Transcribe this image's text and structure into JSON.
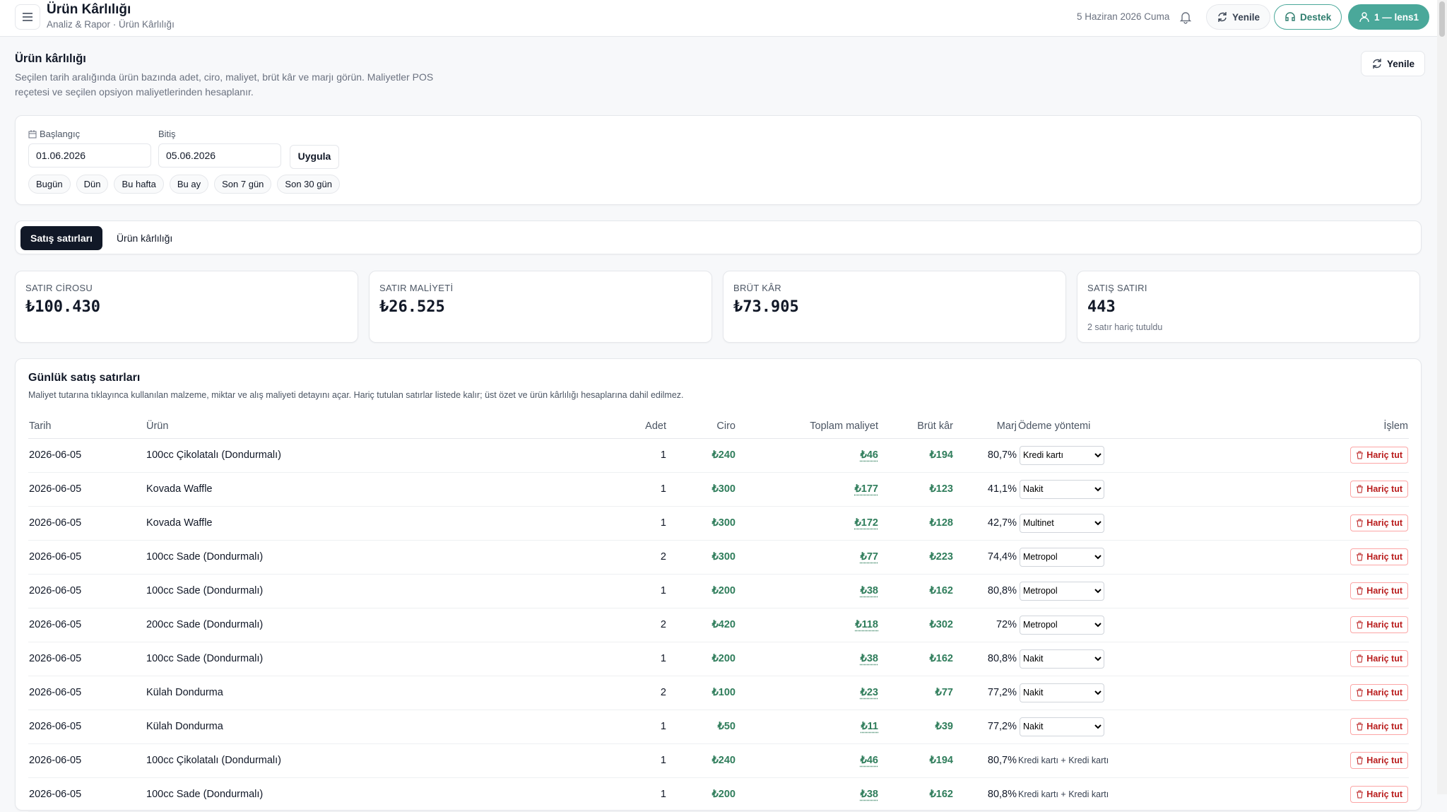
{
  "header": {
    "title": "Ürün Kârlılığı",
    "breadcrumb": "Analiz & Rapor · Ürün Kârlılığı",
    "date": "5 Haziran 2026 Cuma",
    "refresh": "Yenile",
    "support": "Destek",
    "user": "1 — lens1"
  },
  "intro": {
    "title": "Ürün kârlılığı",
    "description": "Seçilen tarih aralığında ürün bazında adet, ciro, maliyet, brüt kâr ve marjı görün. Maliyetler POS reçetesi ve seçilen opsiyon maliyetlerinden hesaplanır.",
    "refresh": "Yenile"
  },
  "filters": {
    "start_label": "Başlangıç",
    "start": "01.06.2026",
    "end_label": "Bitiş",
    "end": "05.06.2026",
    "apply": "Uygula",
    "presets": [
      "Bugün",
      "Dün",
      "Bu hafta",
      "Bu ay",
      "Son 7 gün",
      "Son 30 gün"
    ]
  },
  "tabs": [
    "Satış satırları",
    "Ürün kârlılığı"
  ],
  "cards": [
    {
      "label": "SATIR CİROSU",
      "value": "₺100.430"
    },
    {
      "label": "SATIR MALİYETİ",
      "value": "₺26.525"
    },
    {
      "label": "BRÜT KÂR",
      "value": "₺73.905"
    },
    {
      "label": "SATIŞ SATIRI",
      "value": "443",
      "note": "2 satır hariç tutuldu"
    }
  ],
  "table": {
    "title": "Günlük satış satırları",
    "description": "Maliyet tutarına tıklayınca kullanılan malzeme, miktar ve alış maliyeti detayını açar. Hariç tutulan satırlar listede kalır; üst özet ve ürün kârlılığı hesaplarına dahil edilmez.",
    "columns": [
      "Tarih",
      "Ürün",
      "Adet",
      "Ciro",
      "Toplam maliyet",
      "Brüt kâr",
      "Marj",
      "Ödeme yöntemi",
      "İşlem"
    ],
    "action_label": "Hariç tut",
    "rows": [
      [
        "2026-06-05",
        "100cc Çikolatalı (Dondurmalı)",
        "1",
        "₺240",
        "₺46",
        "₺194",
        "80,7%",
        "Kredi kartı"
      ],
      [
        "2026-06-05",
        "Kovada Waffle",
        "1",
        "₺300",
        "₺177",
        "₺123",
        "41,1%",
        "Nakit"
      ],
      [
        "2026-06-05",
        "Kovada Waffle",
        "1",
        "₺300",
        "₺172",
        "₺128",
        "42,7%",
        "Multinet"
      ],
      [
        "2026-06-05",
        "100cc Sade (Dondurmalı)",
        "2",
        "₺300",
        "₺77",
        "₺223",
        "74,4%",
        "Metropol"
      ],
      [
        "2026-06-05",
        "100cc Sade (Dondurmalı)",
        "1",
        "₺200",
        "₺38",
        "₺162",
        "80,8%",
        "Metropol"
      ],
      [
        "2026-06-05",
        "200cc Sade (Dondurmalı)",
        "2",
        "₺420",
        "₺118",
        "₺302",
        "72%",
        "Metropol"
      ],
      [
        "2026-06-05",
        "100cc Sade (Dondurmalı)",
        "1",
        "₺200",
        "₺38",
        "₺162",
        "80,8%",
        "Nakit"
      ],
      [
        "2026-06-05",
        "Külah Dondurma",
        "2",
        "₺100",
        "₺23",
        "₺77",
        "77,2%",
        "Nakit"
      ],
      [
        "2026-06-05",
        "Külah Dondurma",
        "1",
        "₺50",
        "₺11",
        "₺39",
        "77,2%",
        "Nakit"
      ],
      [
        "2026-06-05",
        "100cc Çikolatalı (Dondurmalı)",
        "1",
        "₺240",
        "₺46",
        "₺194",
        "80,7%",
        "Kredi kartı + Kredi kartı"
      ],
      [
        "2026-06-05",
        "100cc Sade (Dondurmalı)",
        "1",
        "₺200",
        "₺38",
        "₺162",
        "80,8%",
        "Kredi kartı + Kredi kartı"
      ]
    ],
    "editable_payment": [
      true,
      true,
      true,
      true,
      true,
      true,
      true,
      true,
      true,
      false,
      false
    ]
  }
}
